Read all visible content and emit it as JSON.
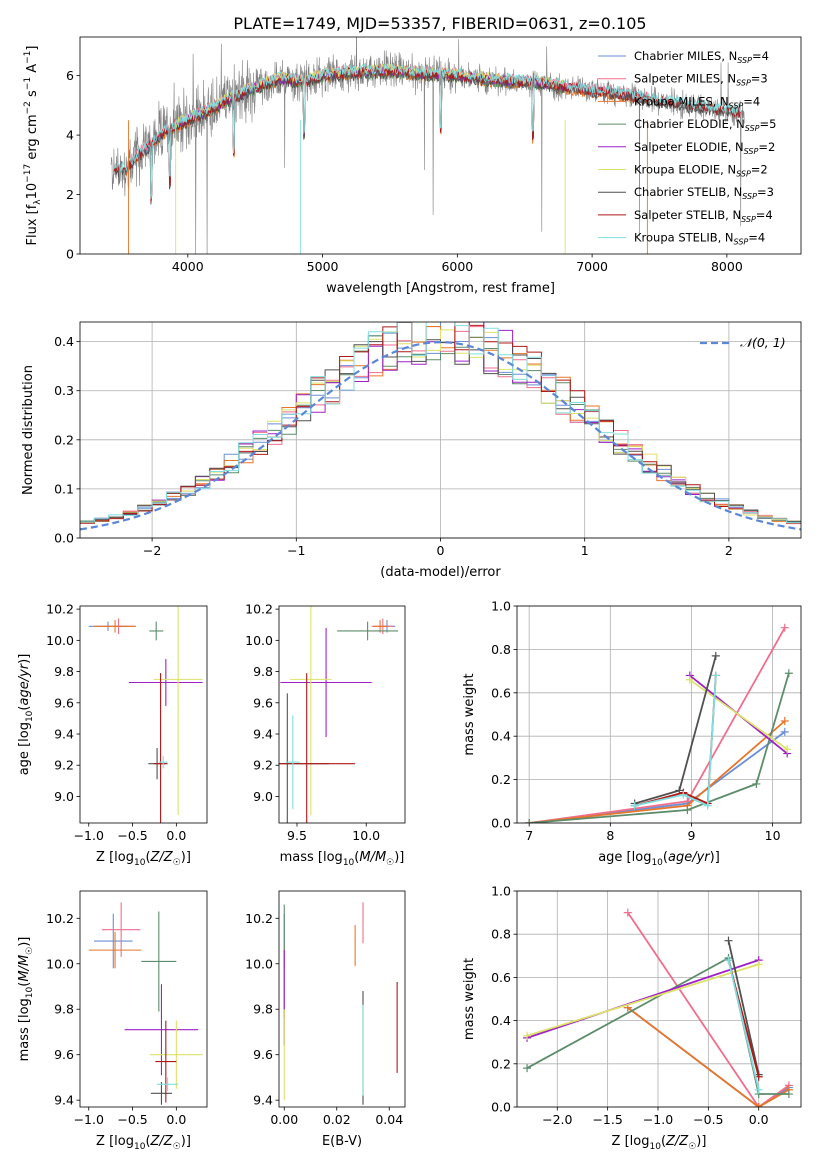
{
  "figure_title": "PLATE=1749, MJD=53357, FIBERID=0631, z=0.105",
  "colors": {
    "Chabrier MILES": "#6a8fd6",
    "Salpeter MILES": "#f06e8c",
    "Kroupa MILES": "#e8762a",
    "Chabrier ELODIE": "#5d8c6a",
    "Salpeter ELODIE": "#a020c8",
    "Kroupa ELODIE": "#dde26a",
    "Chabrier STELIB": "#505050",
    "Salpeter STELIB": "#b01818",
    "Kroupa STELIB": "#80dede",
    "data": "#7f7f7f",
    "normal": "#5b87d6"
  },
  "chart_data": [
    {
      "id": "spectrum",
      "type": "line",
      "xlabel": "wavelength [Angstrom, rest frame]",
      "ylabel": "Flux [f_λ 10^-17 erg cm^-2 s^-1 A^-1]",
      "xlim": [
        3200,
        8550
      ],
      "ylim": [
        0,
        7.3
      ],
      "xticks": [
        4000,
        5000,
        6000,
        7000,
        8000
      ],
      "yticks": [
        0,
        2,
        4,
        6
      ],
      "legend_position": "upper right",
      "legend": [
        {
          "label": "Chabrier MILES, N",
          "sub": "SSP",
          "suffix": "=4",
          "series": "Chabrier MILES"
        },
        {
          "label": "Salpeter MILES, N",
          "sub": "SSP",
          "suffix": "=3",
          "series": "Salpeter MILES"
        },
        {
          "label": "Kroupa MILES, N",
          "sub": "SSP",
          "suffix": "=4",
          "series": "Kroupa MILES"
        },
        {
          "label": "Chabrier ELODIE, N",
          "sub": "SSP",
          "suffix": "=5",
          "series": "Chabrier ELODIE"
        },
        {
          "label": "Salpeter ELODIE, N",
          "sub": "SSP",
          "suffix": "=2",
          "series": "Salpeter ELODIE"
        },
        {
          "label": "Kroupa ELODIE, N",
          "sub": "SSP",
          "suffix": "=2",
          "series": "Kroupa ELODIE"
        },
        {
          "label": "Chabrier STELIB, N",
          "sub": "SSP",
          "suffix": "=3",
          "series": "Chabrier STELIB"
        },
        {
          "label": "Salpeter STELIB, N",
          "sub": "SSP",
          "suffix": "=4",
          "series": "Salpeter STELIB"
        },
        {
          "label": "Kroupa STELIB, N",
          "sub": "SSP",
          "suffix": "=4",
          "series": "Kroupa STELIB"
        }
      ],
      "continuum": {
        "x": [
          3450,
          3550,
          3650,
          3750,
          3850,
          3950,
          4100,
          4300,
          4500,
          4700,
          4850,
          5000,
          5200,
          5500,
          5800,
          6000,
          6300,
          6600,
          6900,
          7200,
          7500,
          7800,
          8000,
          8100
        ],
        "y": [
          2.8,
          2.9,
          3.4,
          3.8,
          4.2,
          4.4,
          4.7,
          5.2,
          5.6,
          5.9,
          5.8,
          6.0,
          6.1,
          6.15,
          6.05,
          6.0,
          5.85,
          5.75,
          5.55,
          5.4,
          5.15,
          4.95,
          4.8,
          4.75
        ]
      }
    },
    {
      "id": "residuals",
      "type": "histogram",
      "xlabel": "(data-model)/error",
      "ylabel": "Normed distribution",
      "xlim": [
        -2.5,
        2.5
      ],
      "ylim": [
        0,
        0.44
      ],
      "xticks": [
        -2,
        -1,
        0,
        1,
        2
      ],
      "yticks": [
        0.0,
        0.1,
        0.2,
        0.3,
        0.4
      ],
      "legend_position": "upper right",
      "legend_label": "𝒩(0, 1)",
      "bin_width": 0.1,
      "grid": true
    },
    {
      "id": "Z-age",
      "type": "errorbar",
      "xlabel": "Z [log10(Z/Z☉)]",
      "ylabel": "age [log10(age/yr)]",
      "xlim": [
        -1.1,
        0.35
      ],
      "ylim": [
        8.83,
        10.22
      ],
      "xticks": [
        -1.0,
        -0.5,
        0.0
      ],
      "yticks": [
        9.0,
        9.2,
        9.4,
        9.6,
        9.8,
        10.0,
        10.2
      ],
      "points": [
        {
          "series": "Chabrier MILES",
          "x": -0.78,
          "xerr": 0.22,
          "y": 10.09,
          "yerr": 0.03
        },
        {
          "series": "Salpeter MILES",
          "x": -0.66,
          "xerr": 0.18,
          "y": 10.09,
          "yerr": 0.05
        },
        {
          "series": "Kroupa MILES",
          "x": -0.7,
          "xerr": 0.24,
          "y": 10.09,
          "yerr": 0.04
        },
        {
          "series": "Chabrier ELODIE",
          "x": -0.23,
          "xerr": 0.08,
          "y": 10.06,
          "yerr": 0.06
        },
        {
          "series": "Salpeter ELODIE",
          "x": -0.12,
          "xerr": 0.42,
          "y": 9.73,
          "yerr": 0.15
        },
        {
          "series": "Kroupa ELODIE",
          "x": 0.02,
          "xerr": 0.28,
          "y": 9.75,
          "yerr": 0.87
        },
        {
          "series": "Chabrier STELIB",
          "x": -0.22,
          "xerr": 0.1,
          "y": 9.21,
          "yerr": 0.1
        },
        {
          "series": "Salpeter STELIB",
          "x": -0.18,
          "xerr": 0.08,
          "y": 9.21,
          "yerr": 0.58
        },
        {
          "series": "Kroupa STELIB",
          "x": -0.15,
          "xerr": 0.05,
          "y": 9.22,
          "yerr": 0.04
        }
      ]
    },
    {
      "id": "mass-age",
      "type": "errorbar",
      "xlabel": "mass [log10(M/M☉)]",
      "ylabel": "",
      "xlim": [
        9.37,
        10.28
      ],
      "ylim": [
        8.83,
        10.22
      ],
      "xticks": [
        9.5,
        10.0
      ],
      "yticks": [
        9.0,
        9.2,
        9.4,
        9.6,
        9.8,
        10.0,
        10.2
      ],
      "points": [
        {
          "series": "Chabrier MILES",
          "x": 10.15,
          "xerr": 0.06,
          "y": 10.09,
          "yerr": 0.04
        },
        {
          "series": "Salpeter MILES",
          "x": 10.12,
          "xerr": 0.08,
          "y": 10.09,
          "yerr": 0.05
        },
        {
          "series": "Kroupa MILES",
          "x": 10.1,
          "xerr": 0.05,
          "y": 10.09,
          "yerr": 0.04
        },
        {
          "series": "Chabrier ELODIE",
          "x": 10.01,
          "xerr": 0.22,
          "y": 10.06,
          "yerr": 0.06
        },
        {
          "series": "Salpeter ELODIE",
          "x": 9.71,
          "xerr": 0.33,
          "y": 9.73,
          "yerr": 0.35
        },
        {
          "series": "Kroupa ELODIE",
          "x": 9.6,
          "xerr": 0.15,
          "y": 9.75,
          "yerr": 0.87
        },
        {
          "series": "Chabrier STELIB",
          "x": 9.43,
          "xerr": 0.3,
          "y": 9.21,
          "yerr": 0.45
        },
        {
          "series": "Salpeter STELIB",
          "x": 9.57,
          "xerr": 0.35,
          "y": 9.21,
          "yerr": 0.58
        },
        {
          "series": "Kroupa STELIB",
          "x": 9.47,
          "xerr": 0.05,
          "y": 9.22,
          "yerr": 0.3
        }
      ]
    },
    {
      "id": "age-weight",
      "type": "line",
      "xlabel": "age [log10(age/yr)]",
      "ylabel": "mass weight",
      "xlim": [
        6.85,
        10.35
      ],
      "ylim": [
        0,
        1
      ],
      "xticks": [
        7,
        8,
        9,
        10
      ],
      "yticks": [
        0.0,
        0.2,
        0.4,
        0.6,
        0.8,
        1.0
      ],
      "grid": true,
      "series": [
        {
          "series": "Chabrier MILES",
          "x": [
            7.0,
            8.95,
            10.15
          ],
          "y": [
            0.0,
            0.09,
            0.42
          ]
        },
        {
          "series": "Salpeter MILES",
          "x": [
            7.0,
            8.95,
            10.15
          ],
          "y": [
            0.0,
            0.1,
            0.9
          ]
        },
        {
          "series": "Kroupa MILES",
          "x": [
            7.0,
            8.95,
            10.15
          ],
          "y": [
            0.0,
            0.08,
            0.47
          ]
        },
        {
          "series": "Chabrier ELODIE",
          "x": [
            7.0,
            8.95,
            9.8,
            10.2
          ],
          "y": [
            0.0,
            0.06,
            0.18,
            0.69
          ]
        },
        {
          "series": "Salpeter ELODIE",
          "x": [
            8.98,
            10.18
          ],
          "y": [
            0.68,
            0.32
          ]
        },
        {
          "series": "Kroupa ELODIE",
          "x": [
            8.98,
            10.18
          ],
          "y": [
            0.66,
            0.34
          ]
        },
        {
          "series": "Chabrier STELIB",
          "x": [
            8.3,
            8.85,
            9.3
          ],
          "y": [
            0.09,
            0.15,
            0.77
          ]
        },
        {
          "series": "Salpeter STELIB",
          "x": [
            8.3,
            8.9,
            9.2,
            9.3
          ],
          "y": [
            0.08,
            0.14,
            0.09,
            0.68
          ]
        },
        {
          "series": "Kroupa STELIB",
          "x": [
            8.3,
            8.9,
            9.2,
            9.3
          ],
          "y": [
            0.08,
            0.13,
            0.08,
            0.68
          ]
        }
      ]
    },
    {
      "id": "Z-mass",
      "type": "errorbar",
      "xlabel": "Z [log10(Z/Z☉)]",
      "ylabel": "mass [log10(M/M☉)]",
      "xlim": [
        -1.1,
        0.35
      ],
      "ylim": [
        9.37,
        10.32
      ],
      "xticks": [
        -1.0,
        -0.5,
        0.0
      ],
      "yticks": [
        9.4,
        9.6,
        9.8,
        10.0,
        10.2
      ],
      "points": [
        {
          "series": "Chabrier MILES",
          "x": -0.72,
          "xerr": 0.22,
          "y": 10.1,
          "yerr": 0.12
        },
        {
          "series": "Salpeter MILES",
          "x": -0.63,
          "xerr": 0.22,
          "y": 10.15,
          "yerr": 0.12
        },
        {
          "series": "Kroupa MILES",
          "x": -0.7,
          "xerr": 0.3,
          "y": 10.06,
          "yerr": 0.08
        },
        {
          "series": "Chabrier ELODIE",
          "x": -0.2,
          "xerr": 0.2,
          "y": 10.01,
          "yerr": 0.22
        },
        {
          "series": "Salpeter ELODIE",
          "x": -0.17,
          "xerr": 0.42,
          "y": 9.71,
          "yerr": 0.2
        },
        {
          "series": "Kroupa ELODIE",
          "x": 0.0,
          "xerr": 0.3,
          "y": 9.6,
          "yerr": 0.15
        },
        {
          "series": "Chabrier STELIB",
          "x": -0.17,
          "xerr": 0.12,
          "y": 9.43,
          "yerr": 0.05
        },
        {
          "series": "Salpeter STELIB",
          "x": -0.12,
          "xerr": 0.12,
          "y": 9.57,
          "yerr": 0.18
        },
        {
          "series": "Kroupa STELIB",
          "x": -0.1,
          "xerr": 0.12,
          "y": 9.47,
          "yerr": 0.03
        }
      ]
    },
    {
      "id": "EBV-mass",
      "type": "errorbar",
      "xlabel": "E(B-V)",
      "ylabel": "",
      "xlim": [
        -0.002,
        0.046
      ],
      "ylim": [
        9.37,
        10.32
      ],
      "xticks": [
        0.0,
        0.02,
        0.04
      ],
      "yticks": [
        9.4,
        9.6,
        9.8,
        10.0,
        10.2
      ],
      "points": [
        {
          "series": "Chabrier MILES",
          "x": 0.0,
          "y": 10.1,
          "yerr": 0.12
        },
        {
          "series": "Salpeter MILES",
          "x": 0.03,
          "y": 10.18,
          "yerr": 0.09
        },
        {
          "series": "Kroupa MILES",
          "x": 0.027,
          "y": 10.08,
          "yerr": 0.09
        },
        {
          "series": "Chabrier ELODIE",
          "x": 0.0,
          "y": 10.01,
          "yerr": 0.25
        },
        {
          "series": "Salpeter ELODIE",
          "x": 0.0,
          "y": 9.85,
          "yerr": 0.21
        },
        {
          "series": "Kroupa ELODIE",
          "x": 0.0,
          "y": 9.6,
          "yerr": 0.2
        },
        {
          "series": "Chabrier STELIB",
          "x": 0.03,
          "y": 9.63,
          "yerr": 0.25
        },
        {
          "series": "Salpeter STELIB",
          "x": 0.043,
          "y": 9.72,
          "yerr": 0.2
        },
        {
          "series": "Kroupa STELIB",
          "x": 0.03,
          "y": 9.62,
          "yerr": 0.2
        }
      ]
    },
    {
      "id": "Z-weight",
      "type": "line",
      "xlabel": "Z [log10(Z/Z☉)]",
      "ylabel": "mass weight",
      "xlim": [
        -2.4,
        0.42
      ],
      "ylim": [
        0,
        1
      ],
      "xticks": [
        -2.0,
        -1.5,
        -1.0,
        -0.5,
        0.0
      ],
      "yticks": [
        0.0,
        0.2,
        0.4,
        0.6,
        0.8,
        1.0
      ],
      "grid": true,
      "series": [
        {
          "series": "Chabrier MILES",
          "x": [
            -1.3,
            0.0,
            0.3
          ],
          "y": [
            0.46,
            0.0,
            0.09
          ]
        },
        {
          "series": "Salpeter MILES",
          "x": [
            -1.3,
            0.0,
            0.3
          ],
          "y": [
            0.9,
            0.0,
            0.1
          ]
        },
        {
          "series": "Kroupa MILES",
          "x": [
            -1.3,
            0.0,
            0.3
          ],
          "y": [
            0.46,
            0.0,
            0.08
          ]
        },
        {
          "series": "Chabrier ELODIE",
          "x": [
            -2.3,
            -0.3,
            0.0,
            0.3
          ],
          "y": [
            0.18,
            0.69,
            0.06,
            0.06
          ]
        },
        {
          "series": "Salpeter ELODIE",
          "x": [
            -2.3,
            0.0
          ],
          "y": [
            0.32,
            0.68
          ]
        },
        {
          "series": "Kroupa ELODIE",
          "x": [
            -2.3,
            0.0
          ],
          "y": [
            0.33,
            0.66
          ]
        },
        {
          "series": "Chabrier STELIB",
          "x": [
            -0.3,
            0.0
          ],
          "y": [
            0.77,
            0.15
          ]
        },
        {
          "series": "Salpeter STELIB",
          "x": [
            -0.3,
            0.0
          ],
          "y": [
            0.68,
            0.14
          ]
        },
        {
          "series": "Kroupa STELIB",
          "x": [
            -0.3,
            0.0
          ],
          "y": [
            0.68,
            0.08
          ]
        }
      ]
    }
  ]
}
